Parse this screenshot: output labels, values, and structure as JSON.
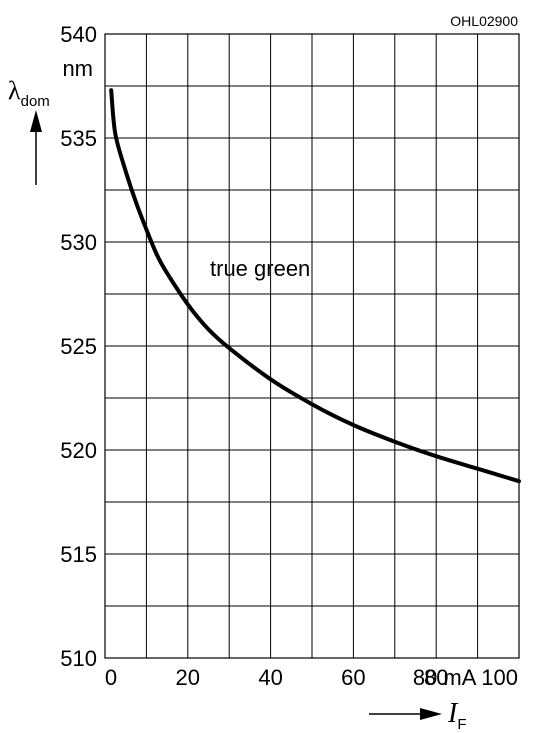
{
  "figure_code": "OHL02900",
  "chart_data": {
    "type": "line",
    "x_values": [
      1.5,
      2.5,
      5,
      7.5,
      10,
      12.5,
      15,
      20,
      25,
      30,
      40,
      50,
      60,
      70,
      80,
      90,
      100
    ],
    "series": [
      {
        "name": "true green",
        "y_values": [
          537.3,
          535.2,
          533.4,
          531.9,
          530.6,
          529.4,
          528.5,
          527.0,
          525.8,
          524.9,
          523.4,
          522.2,
          521.2,
          520.4,
          519.7,
          519.1,
          518.5
        ]
      }
    ],
    "xlim": [
      0,
      100
    ],
    "ylim": [
      510,
      540
    ],
    "x_ticks": [
      0,
      20,
      40,
      60,
      80
    ],
    "y_ticks": [
      510,
      515,
      520,
      525,
      530,
      535,
      540
    ],
    "x_gridlines": [
      0,
      10,
      20,
      30,
      40,
      50,
      60,
      70,
      80,
      90,
      100
    ],
    "y_gridlines": [
      510,
      512.5,
      515,
      517.5,
      520,
      522.5,
      525,
      527.5,
      530,
      532.5,
      535,
      537.5,
      540
    ],
    "grid": true,
    "x_unit_tick": "80 mA 100",
    "y_unit": "nm",
    "ylabel_symbol": "λ",
    "ylabel_subscript": "dom",
    "xlabel_symbol": "I",
    "xlabel_subscript": "F"
  }
}
